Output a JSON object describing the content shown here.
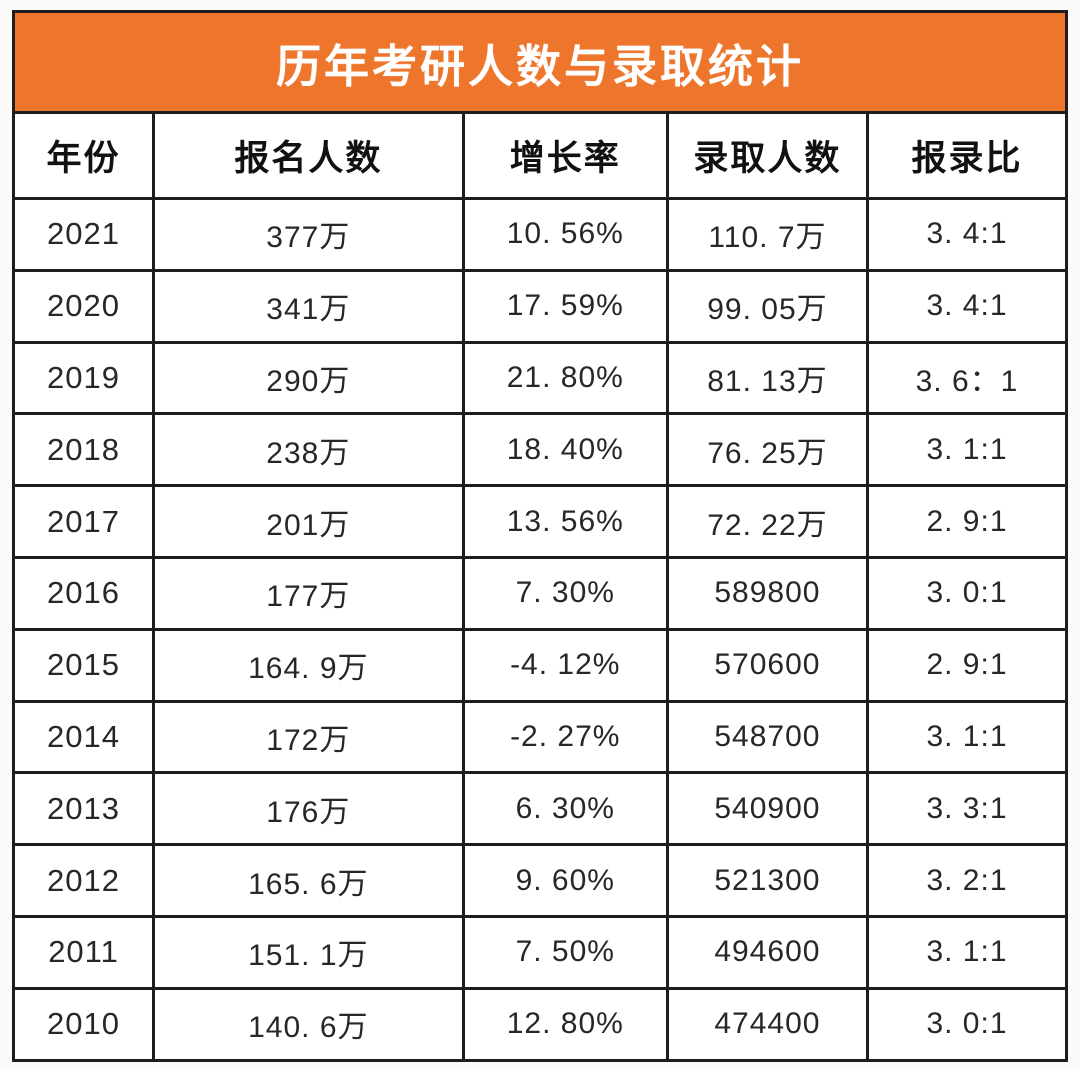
{
  "title": "历年考研人数与录取统计",
  "colors": {
    "header_bg": "#EE762C",
    "header_text": "#FFFFFF",
    "border": "#1D1D1D",
    "cell_bg": "#FFFFFF",
    "cell_text": "#272727",
    "page_bg": "#FBFAF8"
  },
  "chart_data": {
    "type": "table",
    "title": "历年考研人数与录取统计",
    "columns": [
      "年份",
      "报名人数",
      "增长率",
      "录取人数",
      "报录比"
    ],
    "rows": [
      [
        "2021",
        "377万",
        "10. 56%",
        "110. 7万",
        "3. 4:1"
      ],
      [
        "2020",
        "341万",
        "17. 59%",
        "99. 05万",
        "3. 4:1"
      ],
      [
        "2019",
        "290万",
        "21. 80%",
        "81. 13万",
        "3. 6：1"
      ],
      [
        "2018",
        "238万",
        "18. 40%",
        "76. 25万",
        "3. 1:1"
      ],
      [
        "2017",
        "201万",
        "13. 56%",
        "72. 22万",
        "2. 9:1"
      ],
      [
        "2016",
        "177万",
        "7. 30%",
        "589800",
        "3. 0:1"
      ],
      [
        "2015",
        "164. 9万",
        "-4. 12%",
        "570600",
        "2. 9:1"
      ],
      [
        "2014",
        "172万",
        "-2. 27%",
        "548700",
        "3. 1:1"
      ],
      [
        "2013",
        "176万",
        "6. 30%",
        "540900",
        "3. 3:1"
      ],
      [
        "2012",
        "165. 6万",
        "9. 60%",
        "521300",
        "3. 2:1"
      ],
      [
        "2011",
        "151. 1万",
        "7. 50%",
        "494600",
        "3. 1:1"
      ],
      [
        "2010",
        "140. 6万",
        "12. 80%",
        "474400",
        "3. 0:1"
      ]
    ]
  }
}
